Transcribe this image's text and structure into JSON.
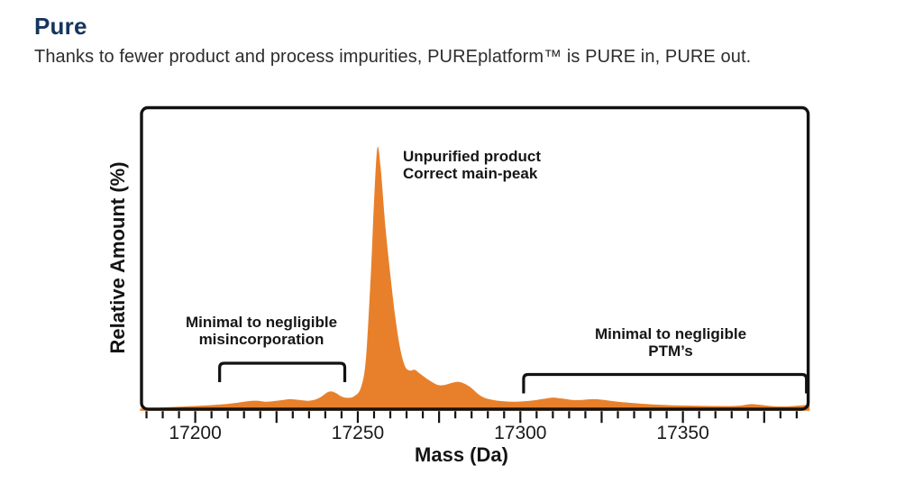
{
  "page": {
    "title": "Pure",
    "subtitle": "Thanks to fewer product and process impurities, PUREplatform™ is PURE in, PURE out.",
    "title_color": "#15355C"
  },
  "chart_data": {
    "type": "area",
    "title": "",
    "xlabel": "Mass (Da)",
    "ylabel": "Relative Amount (%)",
    "xlim": [
      17183,
      17389
    ],
    "ylim": [
      0,
      116
    ],
    "grid": false,
    "x_labeled_ticks": [
      17200,
      17250,
      17300,
      17350
    ],
    "x_minor_tick_step": 5,
    "x_medium_tick_step": 25,
    "frame_color": "#121212",
    "series": [
      {
        "color": "#E8802B",
        "points": [
          [
            17183,
            0.8
          ],
          [
            17188,
            1.1
          ],
          [
            17193,
            1.4
          ],
          [
            17198,
            1.7
          ],
          [
            17203,
            2.0
          ],
          [
            17208,
            2.4
          ],
          [
            17212,
            2.9
          ],
          [
            17216,
            3.6
          ],
          [
            17219,
            3.8
          ],
          [
            17222,
            3.4
          ],
          [
            17226,
            3.9
          ],
          [
            17229,
            4.4
          ],
          [
            17232,
            4.1
          ],
          [
            17235,
            3.8
          ],
          [
            17238,
            4.8
          ],
          [
            17241,
            7.2
          ],
          [
            17243,
            6.9
          ],
          [
            17245,
            5.4
          ],
          [
            17247,
            4.9
          ],
          [
            17249,
            5.6
          ],
          [
            17251,
            9
          ],
          [
            17252.5,
            20
          ],
          [
            17254,
            52
          ],
          [
            17255,
            80
          ],
          [
            17256,
            100
          ],
          [
            17257,
            93
          ],
          [
            17258.5,
            70
          ],
          [
            17260,
            52
          ],
          [
            17261.5,
            36
          ],
          [
            17263,
            24
          ],
          [
            17264.5,
            17
          ],
          [
            17266,
            15.3
          ],
          [
            17267.5,
            15.6
          ],
          [
            17269,
            14.2
          ],
          [
            17271,
            12.4
          ],
          [
            17273,
            10.8
          ],
          [
            17275,
            9.7
          ],
          [
            17277,
            9.9
          ],
          [
            17279,
            10.6
          ],
          [
            17281,
            11.0
          ],
          [
            17283,
            10.2
          ],
          [
            17285,
            8.6
          ],
          [
            17287,
            6.4
          ],
          [
            17289,
            4.9
          ],
          [
            17292,
            4.0
          ],
          [
            17295,
            3.6
          ],
          [
            17298,
            3.4
          ],
          [
            17301,
            3.6
          ],
          [
            17304,
            3.9
          ],
          [
            17307,
            4.5
          ],
          [
            17310,
            5.0
          ],
          [
            17313,
            4.6
          ],
          [
            17316,
            4.1
          ],
          [
            17319,
            4.1
          ],
          [
            17322,
            4.4
          ],
          [
            17325,
            4.2
          ],
          [
            17328,
            3.7
          ],
          [
            17331,
            3.3
          ],
          [
            17334,
            3.0
          ],
          [
            17338,
            2.6
          ],
          [
            17342,
            2.3
          ],
          [
            17346,
            2.1
          ],
          [
            17350,
            2.0
          ],
          [
            17355,
            1.9
          ],
          [
            17360,
            1.8
          ],
          [
            17365,
            1.8
          ],
          [
            17368,
            2.0
          ],
          [
            17371,
            2.5
          ],
          [
            17374,
            2.2
          ],
          [
            17377,
            1.8
          ],
          [
            17380,
            1.6
          ],
          [
            17383,
            1.7
          ],
          [
            17386,
            2.0
          ],
          [
            17389,
            2.2
          ]
        ]
      }
    ],
    "annotations": [
      {
        "id": "main-peak",
        "lines": [
          "Unpurified product",
          "Correct main-peak"
        ]
      },
      {
        "id": "misincorporation",
        "lines": [
          "Minimal to negligible",
          "misincorporation"
        ],
        "bracket_da": [
          17207.5,
          17246
        ]
      },
      {
        "id": "ptm",
        "lines": [
          "Minimal to negligible",
          "PTM’s"
        ],
        "bracket_da": [
          17301,
          17388
        ]
      }
    ]
  }
}
